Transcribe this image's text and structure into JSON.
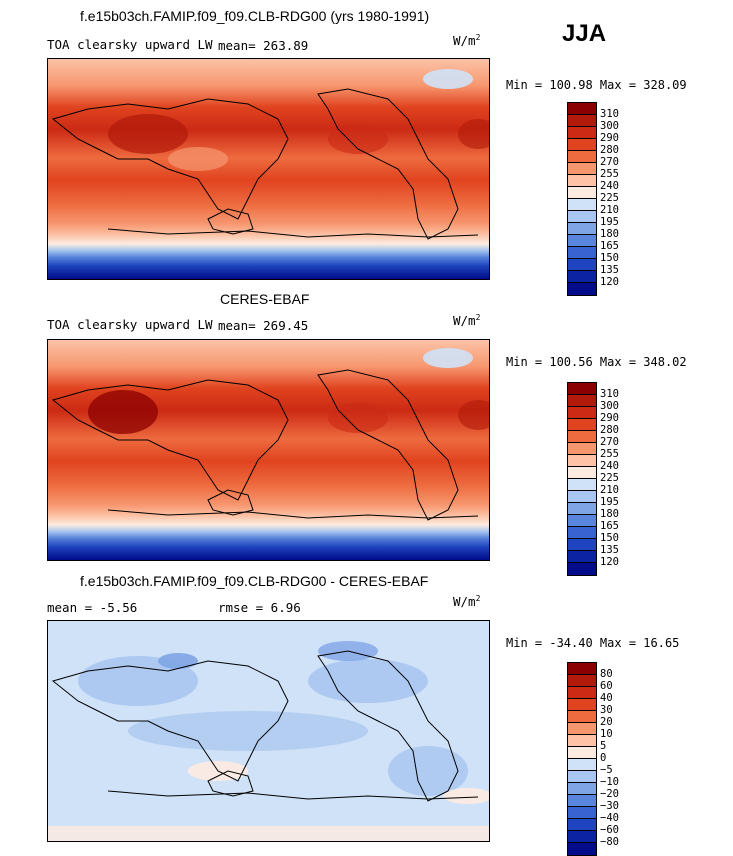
{
  "season": "JJA",
  "units_base": "W/m",
  "units_exp": "2",
  "chart_data": [
    {
      "type": "heatmap",
      "title": "f.e15b03ch.FAMIP.f09_f09.CLB-RDG00 (yrs 1980-1991)",
      "subtitle_left": "TOA clearsky upward LW",
      "mean_text": "mean= 263.89",
      "min_max_text": "Min = 100.98 Max = 328.09",
      "colorbar_levels": [
        "310",
        "300",
        "290",
        "280",
        "270",
        "255",
        "240",
        "225",
        "210",
        "195",
        "180",
        "165",
        "150",
        "135",
        "120"
      ],
      "colorbar_colors": [
        "#8b0000",
        "#b11a0a",
        "#cc2a14",
        "#e0431f",
        "#ee6b3f",
        "#f79770",
        "#fcc3a6",
        "#fdebe0",
        "#cfe2f7",
        "#a8c6ef",
        "#7fa5e6",
        "#5a85dc",
        "#3863d0",
        "#1e44bf",
        "#0a24a4",
        "#000c8a"
      ]
    },
    {
      "type": "heatmap",
      "title": "CERES-EBAF",
      "subtitle_left": "TOA clearsky upward LW",
      "mean_text": "mean= 269.45",
      "min_max_text": "Min = 100.56 Max = 348.02",
      "colorbar_levels": [
        "310",
        "300",
        "290",
        "280",
        "270",
        "255",
        "240",
        "225",
        "210",
        "195",
        "180",
        "165",
        "150",
        "135",
        "120"
      ],
      "colorbar_colors": [
        "#8b0000",
        "#b11a0a",
        "#cc2a14",
        "#e0431f",
        "#ee6b3f",
        "#f79770",
        "#fcc3a6",
        "#fdebe0",
        "#cfe2f7",
        "#a8c6ef",
        "#7fa5e6",
        "#5a85dc",
        "#3863d0",
        "#1e44bf",
        "#0a24a4",
        "#000c8a"
      ]
    },
    {
      "type": "heatmap",
      "title": "f.e15b03ch.FAMIP.f09_f09.CLB-RDG00 - CERES-EBAF",
      "mean_text": "mean =   -5.56",
      "rmse_text": "rmse =    6.96",
      "min_max_text": "Min = -34.40 Max =  16.65",
      "colorbar_levels": [
        "80",
        "60",
        "40",
        "30",
        "20",
        "10",
        "5",
        "0",
        "−5",
        "−10",
        "−20",
        "−30",
        "−40",
        "−60",
        "−80"
      ],
      "colorbar_colors": [
        "#8b0000",
        "#b11a0a",
        "#cc2a14",
        "#e0431f",
        "#ee6b3f",
        "#f79770",
        "#fcc3a6",
        "#fdebe0",
        "#cfe2f7",
        "#a8c6ef",
        "#7fa5e6",
        "#5a85dc",
        "#3863d0",
        "#1e44bf",
        "#0a24a4",
        "#000c8a"
      ]
    }
  ]
}
